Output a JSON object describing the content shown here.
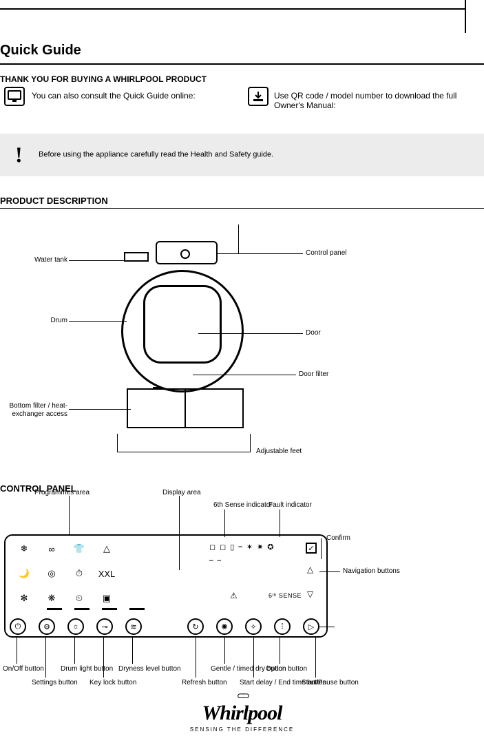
{
  "colors": {
    "text": "#000000",
    "bg": "#ffffff",
    "alert_bg": "#ececec",
    "line": "#000000"
  },
  "typography": {
    "body_pt": 10,
    "heading_pt": 13,
    "title_pt": 20
  },
  "header": {
    "title": "Quick Guide",
    "note_heading": "THANK YOU FOR BUYING A WHIRLPOOL PRODUCT",
    "link_online": "You can also consult the Quick Guide online:",
    "link_download": "Use QR code / model number to download the full Owner's Manual:"
  },
  "alert": {
    "icon": "!",
    "text": "Before using the appliance carefully read the Health and Safety guide."
  },
  "product": {
    "heading": "PRODUCT DESCRIPTION",
    "labels": {
      "tank": "Water tank",
      "panel": "Control panel",
      "drum": "Drum",
      "door": "Door",
      "base_left": "Bottom filter / heat-exchanger access",
      "base_right": "Door filter",
      "feet": "Adjustable feet"
    }
  },
  "control_panel": {
    "heading": "CONTROL PANEL",
    "program_icons": {
      "row1": [
        "❄",
        "∞",
        "👕",
        "△"
      ],
      "row2": [
        "🌙",
        "◎",
        "⏱",
        "XXL"
      ],
      "row3": [
        "✻",
        "❋",
        "⏲",
        "▣"
      ]
    },
    "bottom_buttons": [
      {
        "name": "on-off",
        "glyph": "⏻"
      },
      {
        "name": "settings",
        "glyph": "⚙"
      },
      {
        "name": "light",
        "glyph": "☼"
      },
      {
        "name": "key-lock",
        "glyph": "⊸"
      },
      {
        "name": "dry-level",
        "glyph": "≋"
      },
      {
        "name": "gap",
        "glyph": ""
      },
      {
        "name": "refresh",
        "glyph": "↻"
      },
      {
        "name": "timer",
        "glyph": "✺"
      },
      {
        "name": "delay",
        "glyph": "✧"
      },
      {
        "name": "level",
        "glyph": "⁞"
      },
      {
        "name": "start-pause",
        "glyph": "▷"
      }
    ],
    "display_row1": [
      "◻",
      "◻",
      "▯",
      "⎯",
      "✶",
      "✷",
      "✪"
    ],
    "display_row2": [
      "⎯",
      "⎯"
    ],
    "check_glyph": "✓",
    "up_glyph": "△",
    "down_glyph": "▽",
    "fault_glyph": "⚠",
    "sense_text": "6ᵗʰ SENSE",
    "labels": {
      "programs_area": "Programmes area",
      "on_off": "On/Off button",
      "settings": "Settings button",
      "light": "Drum light button",
      "keylock": "Key lock button",
      "drylevel": "Dryness level button",
      "refresh": "Refresh button",
      "timer": "Gentle / timed dry button",
      "delay": "Start delay / End time button",
      "level": "Option button",
      "start": "Start/Pause button",
      "display": "Display area",
      "check": "Confirm",
      "updown": "Navigation buttons",
      "fault": "Fault indicator",
      "sense": "6th Sense indicator"
    }
  },
  "footer": {
    "chain": "⊂⊃",
    "brand": "Whirlpool",
    "tagline": "SENSING THE DIFFERENCE"
  }
}
